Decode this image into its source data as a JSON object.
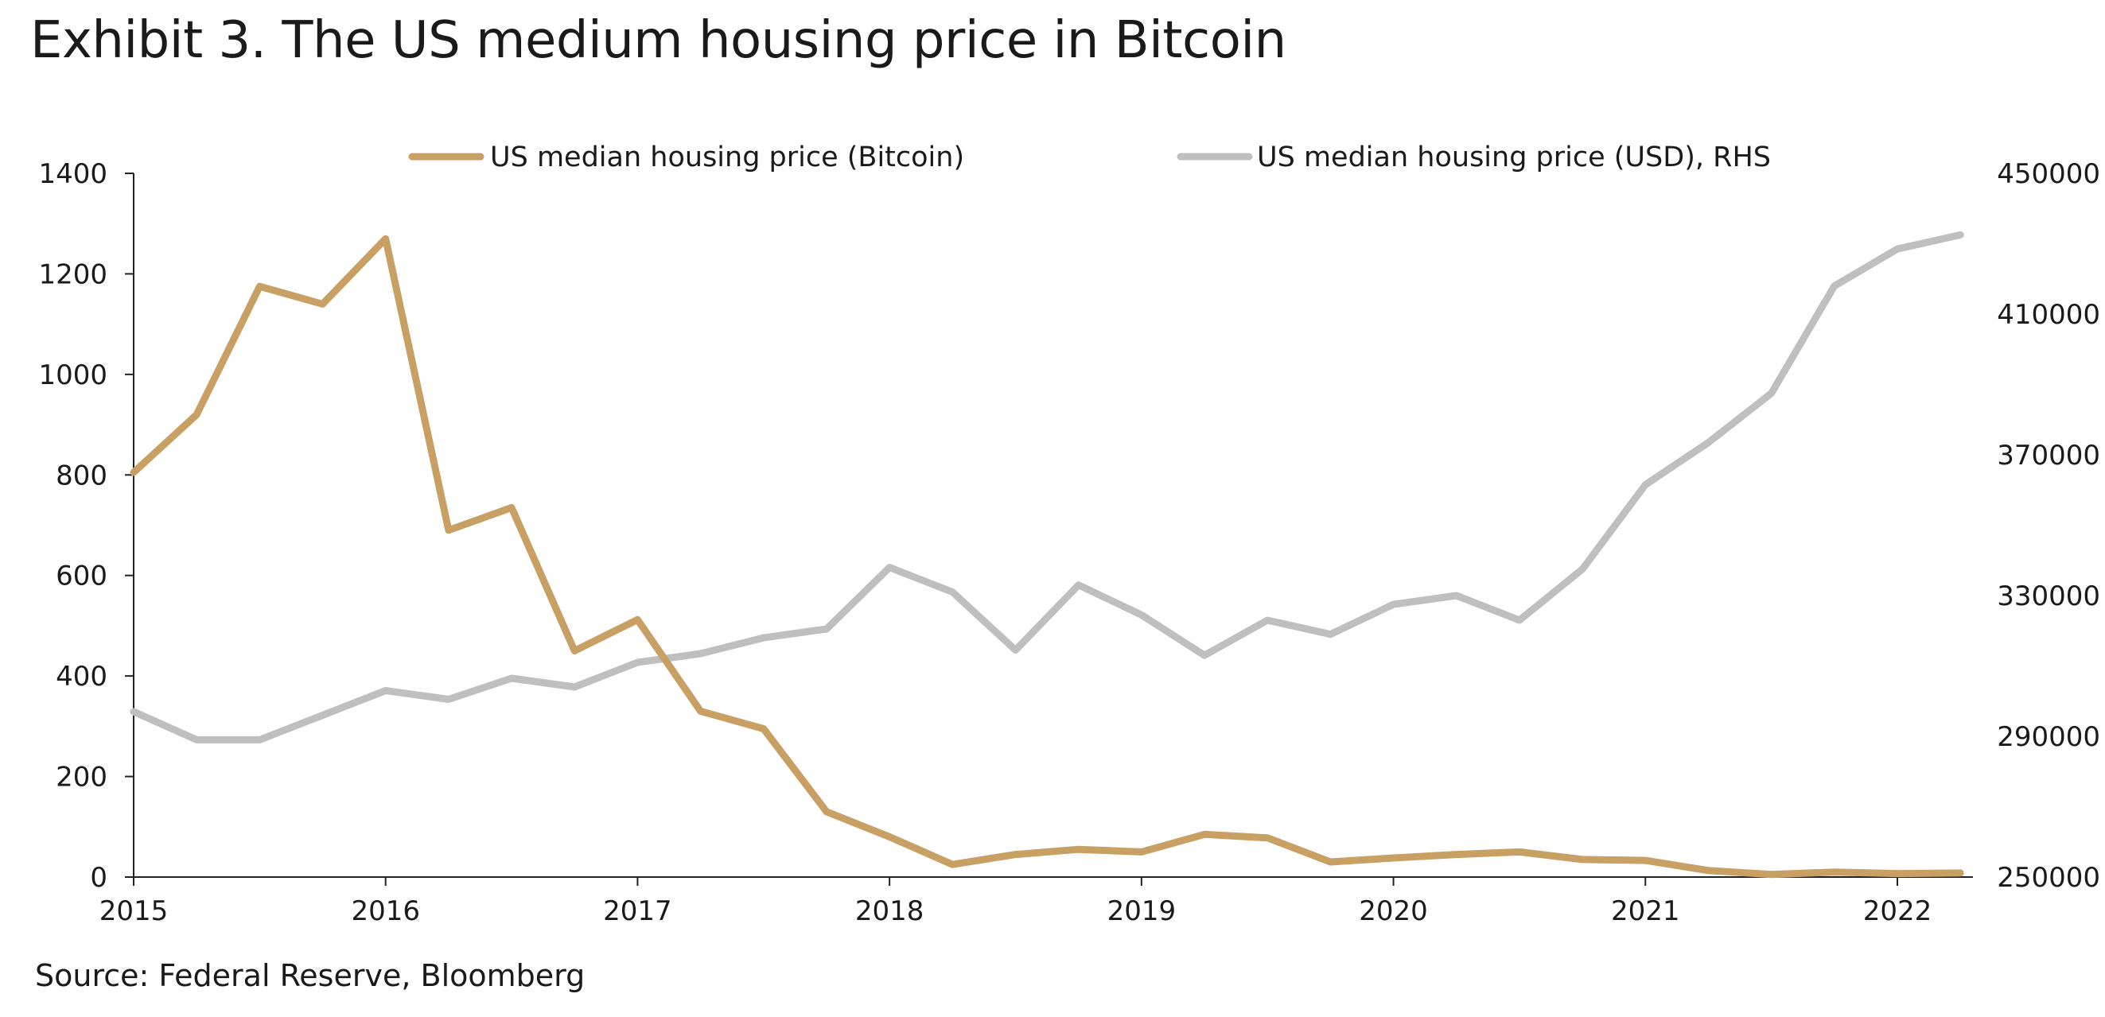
{
  "title": "Exhibit 3. The US medium housing price in Bitcoin",
  "source": "Source: Federal Reserve, Bloomberg",
  "chart_data": {
    "type": "line",
    "title": "Exhibit 3. The US medium housing price in Bitcoin",
    "xlabel": "",
    "ylabel": "",
    "x_start": 2015.0,
    "x_step": 0.25,
    "xlim": [
      2015,
      2022.3
    ],
    "x_ticks": [
      2015,
      2016,
      2017,
      2018,
      2019,
      2020,
      2021,
      2022
    ],
    "x_tick_labels": [
      "2015",
      "2016",
      "2017",
      "2018",
      "2019",
      "2020",
      "2021",
      "2022"
    ],
    "y_left": {
      "lim": [
        0,
        1400
      ],
      "ticks": [
        0,
        200,
        400,
        600,
        800,
        1000,
        1200,
        1400
      ],
      "tick_labels": [
        "0",
        "200",
        "400",
        "600",
        "800",
        "1000",
        "1200",
        "1400"
      ]
    },
    "y_right": {
      "lim": [
        250000,
        450000
      ],
      "ticks": [
        250000,
        290000,
        330000,
        370000,
        410000,
        450000
      ],
      "tick_labels": [
        "250000",
        "290000",
        "330000",
        "370000",
        "410000",
        "450000"
      ]
    },
    "grid": false,
    "legend_position": "top",
    "series": [
      {
        "name": "US median housing price (Bitcoin)",
        "axis": "left",
        "color": "#C9A063",
        "values": [
          805,
          920,
          1175,
          1140,
          1270,
          690,
          735,
          450,
          512,
          330,
          295,
          130,
          80,
          25,
          45,
          55,
          50,
          85,
          78,
          30,
          38,
          45,
          50,
          35,
          33,
          13,
          5,
          10,
          7,
          8
        ]
      },
      {
        "name": "US median housing price (USD), RHS",
        "axis": "right",
        "color": "#BFBFBF",
        "values": [
          297000,
          289000,
          289000,
          296000,
          303000,
          300500,
          306500,
          304000,
          311000,
          313500,
          318000,
          320500,
          338000,
          331000,
          314500,
          333000,
          324500,
          313000,
          323000,
          319000,
          327500,
          330000,
          323000,
          337500,
          361500,
          373500,
          387500,
          418000,
          428500,
          432500
        ]
      }
    ]
  }
}
